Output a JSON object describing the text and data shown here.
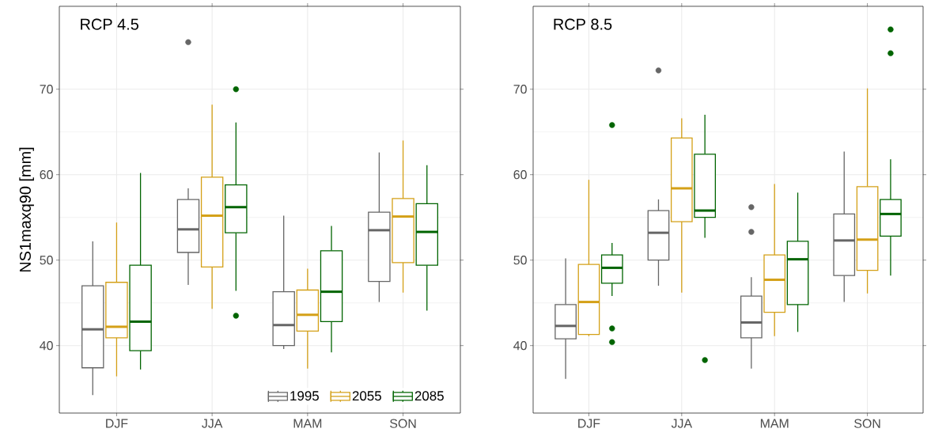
{
  "chart_data": [
    {
      "type": "box",
      "title": "RCP 4.5",
      "ylabel": "NS1maxq90 [mm]",
      "categories": [
        "DJF",
        "JJA",
        "MAM",
        "SON"
      ],
      "ylim": [
        32.1,
        79.7
      ],
      "yticks": [
        40,
        50,
        60,
        70
      ],
      "grid": true,
      "legend": "bottom right",
      "series": [
        {
          "name": "1995",
          "color": "#666666",
          "boxes": [
            {
              "low": 34.2,
              "q1": 37.4,
              "median": 41.9,
              "q3": 47.0,
              "high": 52.2
            },
            {
              "low": 47.1,
              "q1": 50.9,
              "median": 53.6,
              "q3": 57.1,
              "high": 58.4,
              "outliers": [
                75.5
              ]
            },
            {
              "low": 39.6,
              "q1": 40.0,
              "median": 42.4,
              "q3": 46.3,
              "high": 55.2
            },
            {
              "low": 45.1,
              "q1": 47.5,
              "median": 53.5,
              "q3": 55.6,
              "high": 62.6
            }
          ]
        },
        {
          "name": "2055",
          "color": "#d4a017",
          "boxes": [
            {
              "low": 36.4,
              "q1": 40.9,
              "median": 42.2,
              "q3": 47.4,
              "high": 54.4
            },
            {
              "low": 44.3,
              "q1": 49.2,
              "median": 55.2,
              "q3": 59.7,
              "high": 68.2
            },
            {
              "low": 37.3,
              "q1": 41.7,
              "median": 43.6,
              "q3": 46.5,
              "high": 49.0
            },
            {
              "low": 46.2,
              "q1": 49.7,
              "median": 55.1,
              "q3": 57.2,
              "high": 64.0
            }
          ]
        },
        {
          "name": "2085",
          "color": "#006400",
          "boxes": [
            {
              "low": 37.2,
              "q1": 39.4,
              "median": 42.8,
              "q3": 49.4,
              "high": 60.2
            },
            {
              "low": 46.4,
              "q1": 53.2,
              "median": 56.2,
              "q3": 58.8,
              "high": 66.1,
              "outliers": [
                70.0,
                43.5
              ]
            },
            {
              "low": 39.2,
              "q1": 42.8,
              "median": 46.3,
              "q3": 51.1,
              "high": 54.0
            },
            {
              "low": 44.1,
              "q1": 49.4,
              "median": 53.3,
              "q3": 56.6,
              "high": 61.1
            }
          ]
        }
      ]
    },
    {
      "type": "box",
      "title": "RCP 8.5",
      "categories": [
        "DJF",
        "JJA",
        "MAM",
        "SON"
      ],
      "ylim": [
        32.1,
        79.7
      ],
      "yticks": [
        40,
        50,
        60,
        70
      ],
      "grid": true,
      "series": [
        {
          "color": "#666666",
          "boxes": [
            {
              "low": 36.1,
              "q1": 40.8,
              "median": 42.3,
              "q3": 44.8,
              "high": 50.2
            },
            {
              "low": 47.0,
              "q1": 50.0,
              "median": 53.2,
              "q3": 55.8,
              "high": 57.1,
              "outliers": [
                72.2
              ]
            },
            {
              "low": 37.3,
              "q1": 40.9,
              "median": 42.7,
              "q3": 45.8,
              "high": 48.0,
              "outliers": [
                56.2,
                53.3
              ]
            },
            {
              "low": 45.1,
              "q1": 48.2,
              "median": 52.3,
              "q3": 55.4,
              "high": 62.7
            }
          ]
        },
        {
          "color": "#d4a017",
          "boxes": [
            {
              "low": 41.1,
              "q1": 41.3,
              "median": 45.1,
              "q3": 49.5,
              "high": 59.4
            },
            {
              "low": 46.2,
              "q1": 54.5,
              "median": 58.4,
              "q3": 64.3,
              "high": 66.6
            },
            {
              "low": 41.1,
              "q1": 43.9,
              "median": 47.7,
              "q3": 50.6,
              "high": 58.9
            },
            {
              "low": 46.1,
              "q1": 48.8,
              "median": 52.4,
              "q3": 58.6,
              "high": 70.1
            }
          ]
        },
        {
          "color": "#006400",
          "boxes": [
            {
              "low": 45.8,
              "q1": 47.3,
              "median": 49.1,
              "q3": 50.6,
              "high": 52.0,
              "outliers": [
                65.8,
                42.0,
                40.4
              ]
            },
            {
              "low": 52.6,
              "q1": 55.0,
              "median": 55.8,
              "q3": 62.4,
              "high": 67.0,
              "outliers": [
                38.3
              ]
            },
            {
              "low": 41.6,
              "q1": 44.8,
              "median": 50.1,
              "q3": 52.2,
              "high": 57.9
            },
            {
              "low": 48.2,
              "q1": 52.8,
              "median": 55.4,
              "q3": 57.1,
              "high": 61.8,
              "outliers": [
                77.0,
                74.2
              ]
            }
          ]
        }
      ]
    }
  ]
}
